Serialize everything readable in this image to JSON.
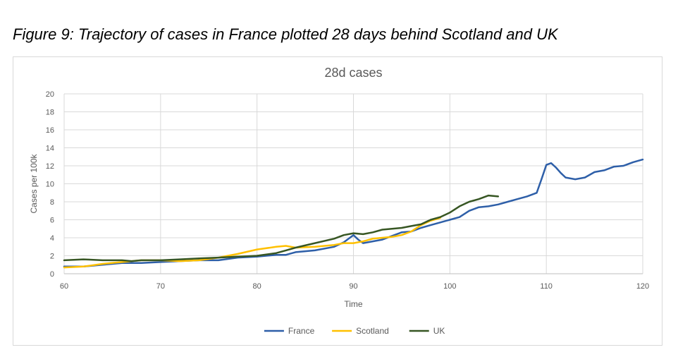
{
  "figure_caption": "Figure 9: Trajectory of cases in France plotted 28 days behind Scotland and UK",
  "chart_data": {
    "type": "line",
    "title": "28d cases",
    "xlabel": "Time",
    "ylabel": "Cases per 100k",
    "xlim": [
      60,
      120
    ],
    "ylim": [
      0,
      20
    ],
    "x_ticks": [
      60,
      70,
      80,
      90,
      100,
      110,
      120
    ],
    "y_ticks": [
      0,
      2,
      4,
      6,
      8,
      10,
      12,
      14,
      16,
      18,
      20
    ],
    "grid": true,
    "legend": "bottom",
    "series": [
      {
        "name": "France",
        "color": "#2e5fa8",
        "points": [
          [
            60,
            0.8
          ],
          [
            62,
            0.8
          ],
          [
            64,
            1.0
          ],
          [
            66,
            1.2
          ],
          [
            68,
            1.2
          ],
          [
            70,
            1.3
          ],
          [
            72,
            1.4
          ],
          [
            74,
            1.5
          ],
          [
            76,
            1.5
          ],
          [
            78,
            1.8
          ],
          [
            80,
            1.9
          ],
          [
            82,
            2.1
          ],
          [
            83,
            2.1
          ],
          [
            84,
            2.4
          ],
          [
            86,
            2.6
          ],
          [
            88,
            3.0
          ],
          [
            89,
            3.5
          ],
          [
            90,
            4.3
          ],
          [
            90.5,
            3.8
          ],
          [
            91,
            3.4
          ],
          [
            92,
            3.6
          ],
          [
            93,
            3.8
          ],
          [
            94,
            4.2
          ],
          [
            95,
            4.6
          ],
          [
            96,
            4.7
          ],
          [
            97,
            5.1
          ],
          [
            98,
            5.4
          ],
          [
            99,
            5.7
          ],
          [
            100,
            6.0
          ],
          [
            101,
            6.3
          ],
          [
            102,
            7.0
          ],
          [
            103,
            7.4
          ],
          [
            104,
            7.5
          ],
          [
            105,
            7.7
          ],
          [
            106,
            8.0
          ],
          [
            107,
            8.3
          ],
          [
            108,
            8.6
          ],
          [
            109,
            9.0
          ],
          [
            109.5,
            10.5
          ],
          [
            110,
            12.1
          ],
          [
            110.5,
            12.3
          ],
          [
            111,
            11.8
          ],
          [
            111.5,
            11.2
          ],
          [
            112,
            10.7
          ],
          [
            113,
            10.5
          ],
          [
            114,
            10.7
          ],
          [
            115,
            11.3
          ],
          [
            116,
            11.5
          ],
          [
            117,
            11.9
          ],
          [
            118,
            12.0
          ],
          [
            119,
            12.4
          ],
          [
            120,
            12.7
          ]
        ]
      },
      {
        "name": "Scotland",
        "color": "#ffc000",
        "points": [
          [
            60,
            0.7
          ],
          [
            62,
            0.8
          ],
          [
            64,
            1.1
          ],
          [
            66,
            1.3
          ],
          [
            68,
            1.5
          ],
          [
            70,
            1.5
          ],
          [
            72,
            1.4
          ],
          [
            74,
            1.5
          ],
          [
            76,
            1.8
          ],
          [
            78,
            2.2
          ],
          [
            80,
            2.7
          ],
          [
            82,
            3.0
          ],
          [
            83,
            3.1
          ],
          [
            84,
            2.9
          ],
          [
            86,
            3.0
          ],
          [
            88,
            3.2
          ],
          [
            89,
            3.4
          ],
          [
            90,
            3.4
          ],
          [
            91,
            3.6
          ],
          [
            92,
            3.9
          ],
          [
            93,
            4.0
          ],
          [
            94,
            4.1
          ],
          [
            95,
            4.3
          ],
          [
            96,
            4.7
          ],
          [
            97,
            5.4
          ],
          [
            98,
            5.9
          ],
          [
            99,
            6.2
          ]
        ]
      },
      {
        "name": "UK",
        "color": "#375623",
        "points": [
          [
            60,
            1.5
          ],
          [
            62,
            1.6
          ],
          [
            64,
            1.5
          ],
          [
            66,
            1.5
          ],
          [
            67,
            1.4
          ],
          [
            68,
            1.5
          ],
          [
            70,
            1.5
          ],
          [
            72,
            1.6
          ],
          [
            74,
            1.7
          ],
          [
            76,
            1.8
          ],
          [
            78,
            1.9
          ],
          [
            80,
            2.0
          ],
          [
            82,
            2.3
          ],
          [
            83,
            2.6
          ],
          [
            84,
            2.9
          ],
          [
            86,
            3.4
          ],
          [
            88,
            3.9
          ],
          [
            89,
            4.3
          ],
          [
            90,
            4.5
          ],
          [
            91,
            4.4
          ],
          [
            92,
            4.6
          ],
          [
            93,
            4.9
          ],
          [
            94,
            5.0
          ],
          [
            95,
            5.1
          ],
          [
            96,
            5.3
          ],
          [
            97,
            5.5
          ],
          [
            98,
            6.0
          ],
          [
            99,
            6.3
          ],
          [
            100,
            6.8
          ],
          [
            101,
            7.5
          ],
          [
            102,
            8.0
          ],
          [
            103,
            8.3
          ],
          [
            104,
            8.7
          ],
          [
            105,
            8.6
          ]
        ]
      }
    ]
  }
}
